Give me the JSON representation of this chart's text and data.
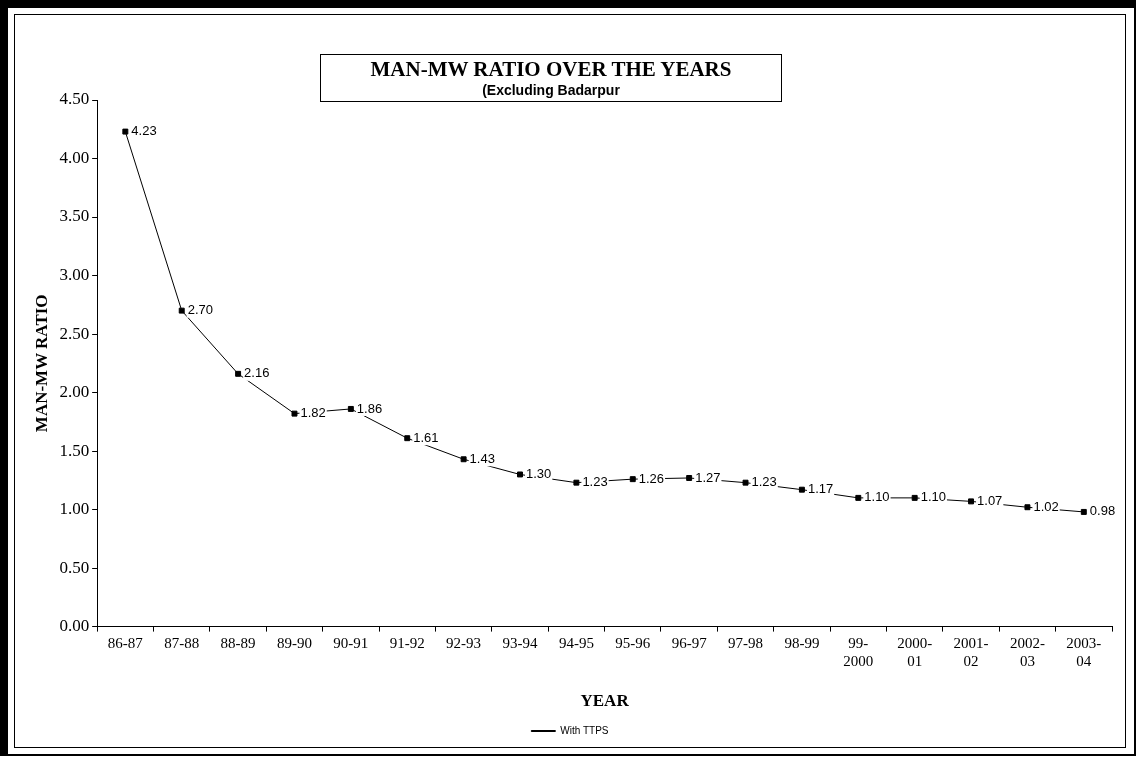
{
  "chart_data": {
    "type": "line",
    "title": "MAN-MW RATIO OVER THE YEARS",
    "subtitle": "(Excluding Badarpur",
    "xlabel": "YEAR",
    "ylabel": "MAN-MW RATIO",
    "categories": [
      "86-87",
      "87-88",
      "88-89",
      "89-90",
      "90-91",
      "91-92",
      "92-93",
      "93-94",
      "94-95",
      "95-96",
      "96-97",
      "97-98",
      "98-99",
      "99-2000",
      "2000-01",
      "2001-02",
      "2002-03",
      "2003-04"
    ],
    "series": [
      {
        "name": "With TTPS",
        "color": "#000000",
        "values": [
          4.23,
          2.7,
          2.16,
          1.82,
          1.86,
          1.61,
          1.43,
          1.3,
          1.23,
          1.26,
          1.27,
          1.23,
          1.17,
          1.1,
          1.1,
          1.07,
          1.02,
          0.98
        ]
      }
    ],
    "ylim": [
      0,
      4.5
    ],
    "yticks": [
      {
        "value": 0,
        "label": "0.00"
      },
      {
        "value": 0.5,
        "label": "0.50"
      },
      {
        "value": 1,
        "label": "1.00"
      },
      {
        "value": 1.5,
        "label": "1.50"
      },
      {
        "value": 2,
        "label": "2.00"
      },
      {
        "value": 2.5,
        "label": "2.50"
      },
      {
        "value": 3,
        "label": "3.00"
      },
      {
        "value": 3.5,
        "label": "3.50"
      },
      {
        "value": 4,
        "label": "4.00"
      },
      {
        "value": 4.5,
        "label": "4.50"
      }
    ],
    "value_labels": [
      "4.23",
      "2.70",
      "2.16",
      "1.82",
      "1.86",
      "1.61",
      "1.43",
      "1.30",
      "1.23",
      "1.26",
      "1.27",
      "1.23",
      "1.17",
      "1.10",
      "1.10",
      "1.07",
      "1.02",
      "0.98"
    ],
    "grid": false,
    "legend": "bottom",
    "marker": "square",
    "line_style": "solid"
  }
}
